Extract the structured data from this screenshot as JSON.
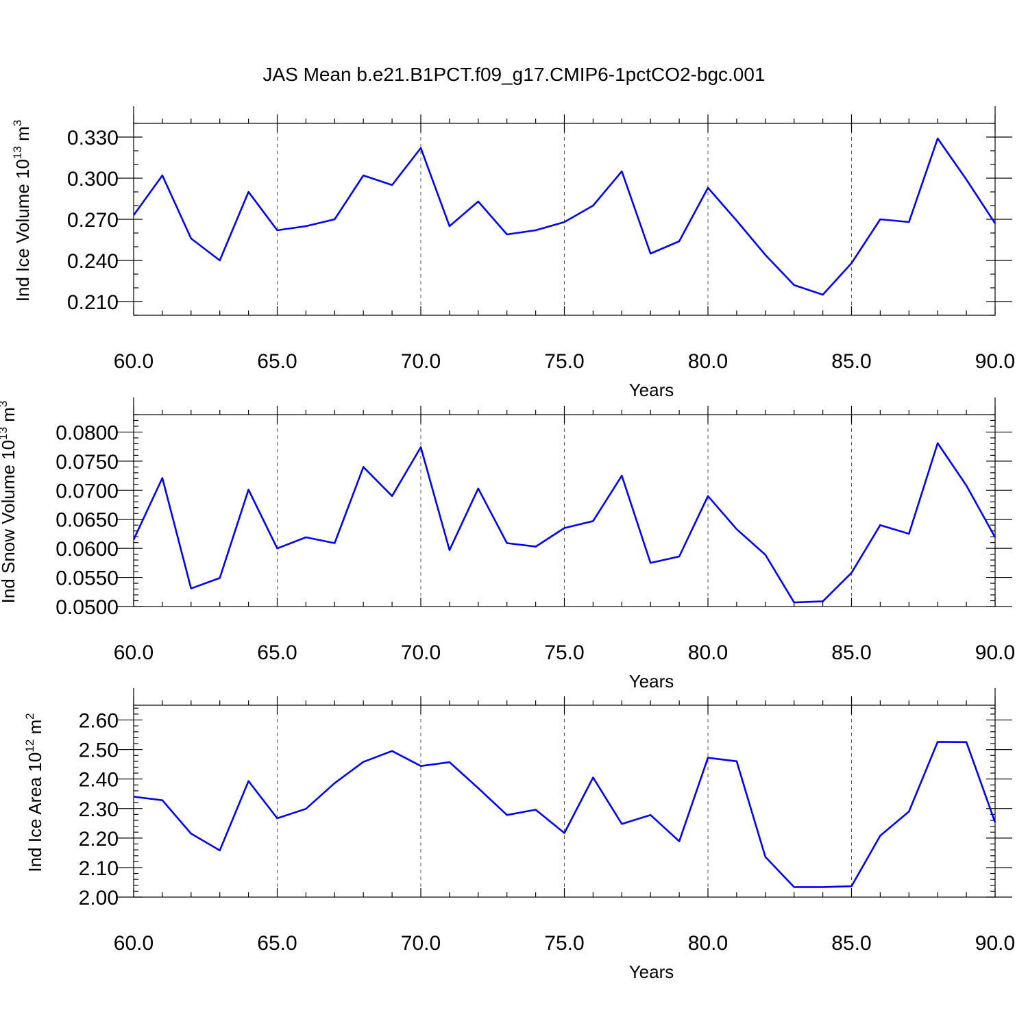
{
  "title": "JAS Mean b.e21.B1PCT.f09_g17.CMIP6-1pctCO2-bgc.001",
  "colors": {
    "series": "#0000ff",
    "grid": "#555555",
    "axis": "#000000"
  },
  "chart_data": [
    {
      "type": "line",
      "xlabel": "Years",
      "ylabel": {
        "text": "Ind Ice Volume 10",
        "exp": "13",
        "unit": " m",
        "unit_exp": "3"
      },
      "xlim": [
        60,
        90
      ],
      "ylim": [
        0.2,
        0.34
      ],
      "x_ticks": [
        60,
        65,
        70,
        75,
        80,
        85,
        90
      ],
      "x_tick_labels": [
        "60.0",
        "65.0",
        "70.0",
        "75.0",
        "80.0",
        "85.0",
        "90.0"
      ],
      "y_ticks": [
        0.21,
        0.24,
        0.27,
        0.3,
        0.33
      ],
      "y_tick_labels": [
        "0.210",
        "0.240",
        "0.270",
        "0.300",
        "0.330"
      ],
      "y_minor_step": 0.01,
      "grid": "vertical-dashed",
      "series": [
        {
          "x": [
            60,
            61,
            62,
            63,
            64,
            65,
            66,
            67,
            68,
            69,
            70,
            71,
            72,
            73,
            74,
            75,
            76,
            77,
            78,
            79,
            80,
            81,
            82,
            83,
            84,
            85,
            86,
            87,
            88,
            89,
            90
          ],
          "y": [
            0.273,
            0.302,
            0.256,
            0.24,
            0.29,
            0.262,
            0.265,
            0.27,
            0.302,
            0.295,
            0.322,
            0.265,
            0.283,
            0.259,
            0.262,
            0.268,
            0.28,
            0.305,
            0.245,
            0.254,
            0.293,
            0.269,
            0.244,
            0.222,
            0.215,
            0.238,
            0.27,
            0.268,
            0.329,
            0.299,
            0.267
          ]
        }
      ]
    },
    {
      "type": "line",
      "xlabel": "Years",
      "ylabel": {
        "text": "Ind Snow Volume 10",
        "exp": "13",
        "unit": " m",
        "unit_exp": "3"
      },
      "xlim": [
        60,
        90
      ],
      "ylim": [
        0.05,
        0.083
      ],
      "x_ticks": [
        60,
        65,
        70,
        75,
        80,
        85,
        90
      ],
      "x_tick_labels": [
        "60.0",
        "65.0",
        "70.0",
        "75.0",
        "80.0",
        "85.0",
        "90.0"
      ],
      "y_ticks": [
        0.05,
        0.055,
        0.06,
        0.065,
        0.07,
        0.075,
        0.08
      ],
      "y_tick_labels": [
        "0.0500",
        "0.0550",
        "0.0600",
        "0.0650",
        "0.0700",
        "0.0750",
        "0.0800"
      ],
      "y_minor_step": 0.001,
      "grid": "vertical-dashed",
      "series": [
        {
          "x": [
            60,
            61,
            62,
            63,
            64,
            65,
            66,
            67,
            68,
            69,
            70,
            71,
            72,
            73,
            74,
            75,
            76,
            77,
            78,
            79,
            80,
            81,
            82,
            83,
            84,
            85,
            86,
            87,
            88,
            89,
            90
          ],
          "y": [
            0.0615,
            0.0721,
            0.0531,
            0.0549,
            0.0701,
            0.06,
            0.0619,
            0.0609,
            0.074,
            0.069,
            0.0774,
            0.0597,
            0.0703,
            0.0609,
            0.0603,
            0.0635,
            0.0647,
            0.0725,
            0.0575,
            0.0586,
            0.069,
            0.0633,
            0.0589,
            0.0507,
            0.0509,
            0.0558,
            0.064,
            0.0625,
            0.0781,
            0.0708,
            0.0619
          ]
        }
      ]
    },
    {
      "type": "line",
      "xlabel": "Years",
      "ylabel": {
        "text": "Ind Ice Area 10",
        "exp": "12",
        "unit": " m",
        "unit_exp": "2"
      },
      "xlim": [
        60,
        90
      ],
      "ylim": [
        2.0,
        2.65
      ],
      "x_ticks": [
        60,
        65,
        70,
        75,
        80,
        85,
        90
      ],
      "x_tick_labels": [
        "60.0",
        "65.0",
        "70.0",
        "75.0",
        "80.0",
        "85.0",
        "90.0"
      ],
      "y_ticks": [
        2.0,
        2.1,
        2.2,
        2.3,
        2.4,
        2.5,
        2.6
      ],
      "y_tick_labels": [
        "2.00",
        "2.10",
        "2.20",
        "2.30",
        "2.40",
        "2.50",
        "2.60"
      ],
      "y_minor_step": 0.02,
      "grid": "vertical-dashed",
      "series": [
        {
          "x": [
            60,
            61,
            62,
            63,
            64,
            65,
            66,
            67,
            68,
            69,
            70,
            71,
            72,
            73,
            74,
            75,
            76,
            77,
            78,
            79,
            80,
            81,
            82,
            83,
            84,
            85,
            86,
            87,
            88,
            89,
            90
          ],
          "y": [
            2.34,
            2.328,
            2.215,
            2.158,
            2.393,
            2.267,
            2.299,
            2.386,
            2.458,
            2.495,
            2.444,
            2.457,
            2.369,
            2.278,
            2.296,
            2.217,
            2.405,
            2.248,
            2.278,
            2.189,
            2.472,
            2.46,
            2.136,
            2.034,
            2.034,
            2.037,
            2.208,
            2.29,
            2.526,
            2.525,
            2.253
          ]
        }
      ]
    }
  ]
}
